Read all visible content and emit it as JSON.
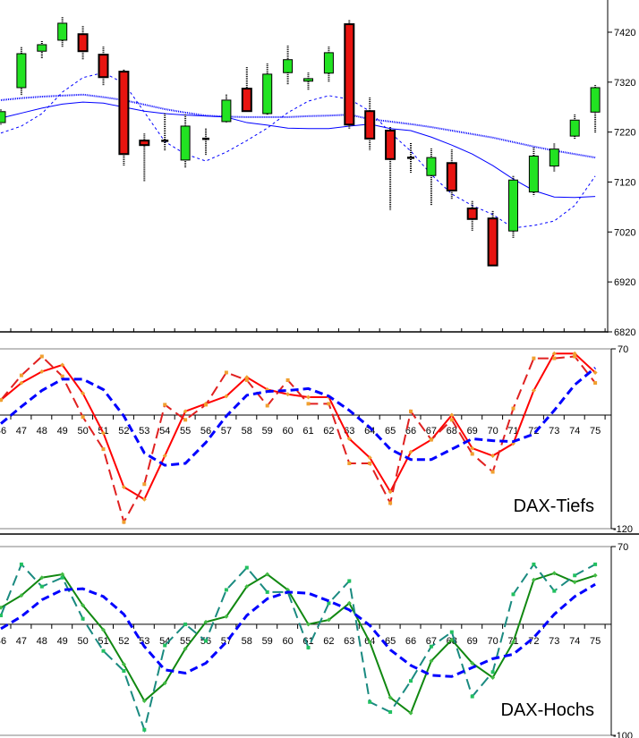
{
  "chart_data": [
    {
      "type": "candlestick",
      "title": "",
      "ylim": [
        6820,
        7480
      ],
      "yticks": [
        "7420",
        "7320",
        "7220",
        "7120",
        "7020",
        "6920",
        "6820"
      ],
      "colors": {
        "up": "#22e322",
        "down": "#e81410",
        "ma": "#0000ff"
      },
      "x": [
        46,
        47,
        48,
        49,
        50,
        51,
        52,
        53,
        54,
        55,
        56,
        57,
        58,
        59,
        60,
        61,
        62,
        63,
        64,
        65,
        66,
        67,
        68,
        69,
        70,
        71,
        72,
        73,
        74,
        75
      ],
      "open": [
        7239,
        7309,
        7382,
        7404,
        7416,
        7375,
        7341,
        7203,
        7203,
        7164,
        7207,
        7241,
        7307,
        7257,
        7339,
        7322,
        7338,
        7436,
        7262,
        7223,
        7169,
        7133,
        7158,
        7067,
        7047,
        7022,
        7100,
        7152,
        7212,
        7260
      ],
      "high": [
        7265,
        7390,
        7402,
        7450,
        7432,
        7391,
        7345,
        7217,
        7257,
        7255,
        7227,
        7295,
        7350,
        7357,
        7393,
        7339,
        7391,
        7444,
        7289,
        7230,
        7198,
        7187,
        7185,
        7082,
        7062,
        7132,
        7189,
        7197,
        7255,
        7314
      ],
      "low": [
        7235,
        7293,
        7368,
        7390,
        7364,
        7314,
        7153,
        7121,
        7182,
        7148,
        7173,
        7239,
        7261,
        7255,
        7314,
        7305,
        7320,
        7227,
        7184,
        7064,
        7139,
        7074,
        7085,
        7022,
        6951,
        7008,
        7092,
        7141,
        7205,
        7219
      ],
      "close": [
        7261,
        7377,
        7395,
        7438,
        7382,
        7330,
        7176,
        7194,
        7203,
        7232,
        7207,
        7284,
        7262,
        7336,
        7365,
        7327,
        7379,
        7235,
        7207,
        7166,
        7169,
        7169,
        7103,
        7046,
        6953,
        7124,
        7172,
        7186,
        7244,
        7309
      ],
      "ma_long": [
        7284,
        7288,
        7291,
        7293,
        7295,
        7290,
        7284,
        7275,
        7266,
        7259,
        7253,
        7251,
        7250,
        7250,
        7250,
        7252,
        7253,
        7255,
        7246,
        7241,
        7236,
        7230,
        7223,
        7216,
        7209,
        7200,
        7191,
        7183,
        7176,
        7169
      ],
      "ma_mid": [
        7248,
        7258,
        7268,
        7276,
        7280,
        7278,
        7270,
        7262,
        7257,
        7254,
        7252,
        7250,
        7239,
        7234,
        7228,
        7227,
        7227,
        7232,
        7236,
        7227,
        7223,
        7210,
        7194,
        7176,
        7153,
        7126,
        7103,
        7090,
        7089,
        7091
      ],
      "ma_short": [
        7218,
        7232,
        7257,
        7300,
        7329,
        7339,
        7318,
        7260,
        7201,
        7176,
        7162,
        7180,
        7203,
        7228,
        7259,
        7282,
        7293,
        7286,
        7262,
        7219,
        7182,
        7135,
        7096,
        7073,
        7055,
        7028,
        7033,
        7042,
        7073,
        7132
      ]
    },
    {
      "type": "line",
      "title": "DAX-Tiefs",
      "ylim": [
        -120,
        70
      ],
      "yticks": [
        "70",
        "-120"
      ],
      "x": [
        46,
        47,
        48,
        49,
        50,
        51,
        52,
        53,
        54,
        55,
        56,
        57,
        58,
        59,
        60,
        61,
        62,
        63,
        64,
        65,
        66,
        67,
        68,
        69,
        70,
        71,
        72,
        73,
        74,
        75
      ],
      "xticks": [
        "46",
        "47",
        "48",
        "49",
        "50",
        "51",
        "52",
        "53",
        "54",
        "55",
        "56",
        "57",
        "58",
        "59",
        "60",
        "61",
        "62",
        "63",
        "64",
        "65",
        "66",
        "67",
        "68",
        "69",
        "70",
        "71",
        "72",
        "73",
        "74",
        "75"
      ],
      "series": [
        {
          "style": "solid",
          "color": "#ff0000",
          "values": [
            16,
            34,
            46,
            53,
            23,
            -19,
            -76,
            -89,
            -43,
            4,
            12,
            20,
            40,
            27,
            22,
            19,
            19,
            -25,
            -45,
            -81,
            -39,
            -26,
            0,
            -35,
            -43,
            -30,
            26,
            65,
            65,
            45
          ]
        },
        {
          "style": "dashed",
          "color": "#e02020",
          "marker_color": "#f0a030",
          "values": [
            16,
            42,
            62,
            41,
            -2,
            -36,
            -113,
            -73,
            11,
            -5,
            11,
            45,
            37,
            10,
            37,
            12,
            12,
            -51,
            -51,
            -93,
            4,
            -26,
            -5,
            -41,
            -60,
            7,
            60,
            60,
            62,
            34
          ]
        },
        {
          "style": "dashed",
          "color": "#0000ff",
          "values": [
            -9,
            9,
            26,
            38,
            38,
            27,
            -1,
            -40,
            -53,
            -51,
            -29,
            -1,
            21,
            25,
            26,
            28,
            20,
            5,
            -13,
            -36,
            -47,
            -47,
            -36,
            -25,
            -27,
            -28,
            -20,
            5,
            32,
            50
          ]
        }
      ]
    },
    {
      "type": "line",
      "title": "DAX-Hochs",
      "ylim": [
        -100,
        70
      ],
      "yticks": [
        "70",
        "-100"
      ],
      "x": [
        46,
        47,
        48,
        49,
        50,
        51,
        52,
        53,
        54,
        55,
        56,
        57,
        58,
        59,
        60,
        61,
        62,
        63,
        64,
        65,
        66,
        67,
        68,
        69,
        70,
        71,
        72,
        73,
        74,
        75
      ],
      "xticks": [
        "46",
        "47",
        "48",
        "49",
        "50",
        "51",
        "52",
        "53",
        "54",
        "55",
        "56",
        "57",
        "58",
        "59",
        "60",
        "61",
        "62",
        "63",
        "64",
        "65",
        "66",
        "67",
        "68",
        "69",
        "70",
        "71",
        "72",
        "73",
        "74",
        "75"
      ],
      "series": [
        {
          "style": "solid",
          "color": "#118811",
          "values": [
            15,
            26,
            42,
            45,
            17,
            -5,
            -36,
            -69,
            -53,
            -22,
            2,
            7,
            34,
            45,
            31,
            0,
            4,
            19,
            -16,
            -66,
            -80,
            -33,
            -14,
            -35,
            -48,
            -16,
            40,
            46,
            38,
            44
          ]
        },
        {
          "style": "dashed",
          "color": "#1a8a80",
          "marker_color": "#22c060",
          "values": [
            8,
            54,
            34,
            42,
            5,
            -24,
            -42,
            -95,
            -19,
            0,
            -15,
            31,
            51,
            29,
            29,
            -21,
            19,
            39,
            -70,
            -79,
            -51,
            -20,
            -7,
            -65,
            -43,
            27,
            54,
            30,
            44,
            54
          ]
        },
        {
          "style": "dashed",
          "color": "#0000ff",
          "values": [
            -4,
            7,
            22,
            31,
            32,
            25,
            9,
            -20,
            -41,
            -44,
            -35,
            -16,
            8,
            23,
            29,
            28,
            21,
            13,
            -1,
            -23,
            -37,
            -46,
            -47,
            -39,
            -31,
            -27,
            -12,
            9,
            25,
            36
          ]
        }
      ]
    }
  ]
}
